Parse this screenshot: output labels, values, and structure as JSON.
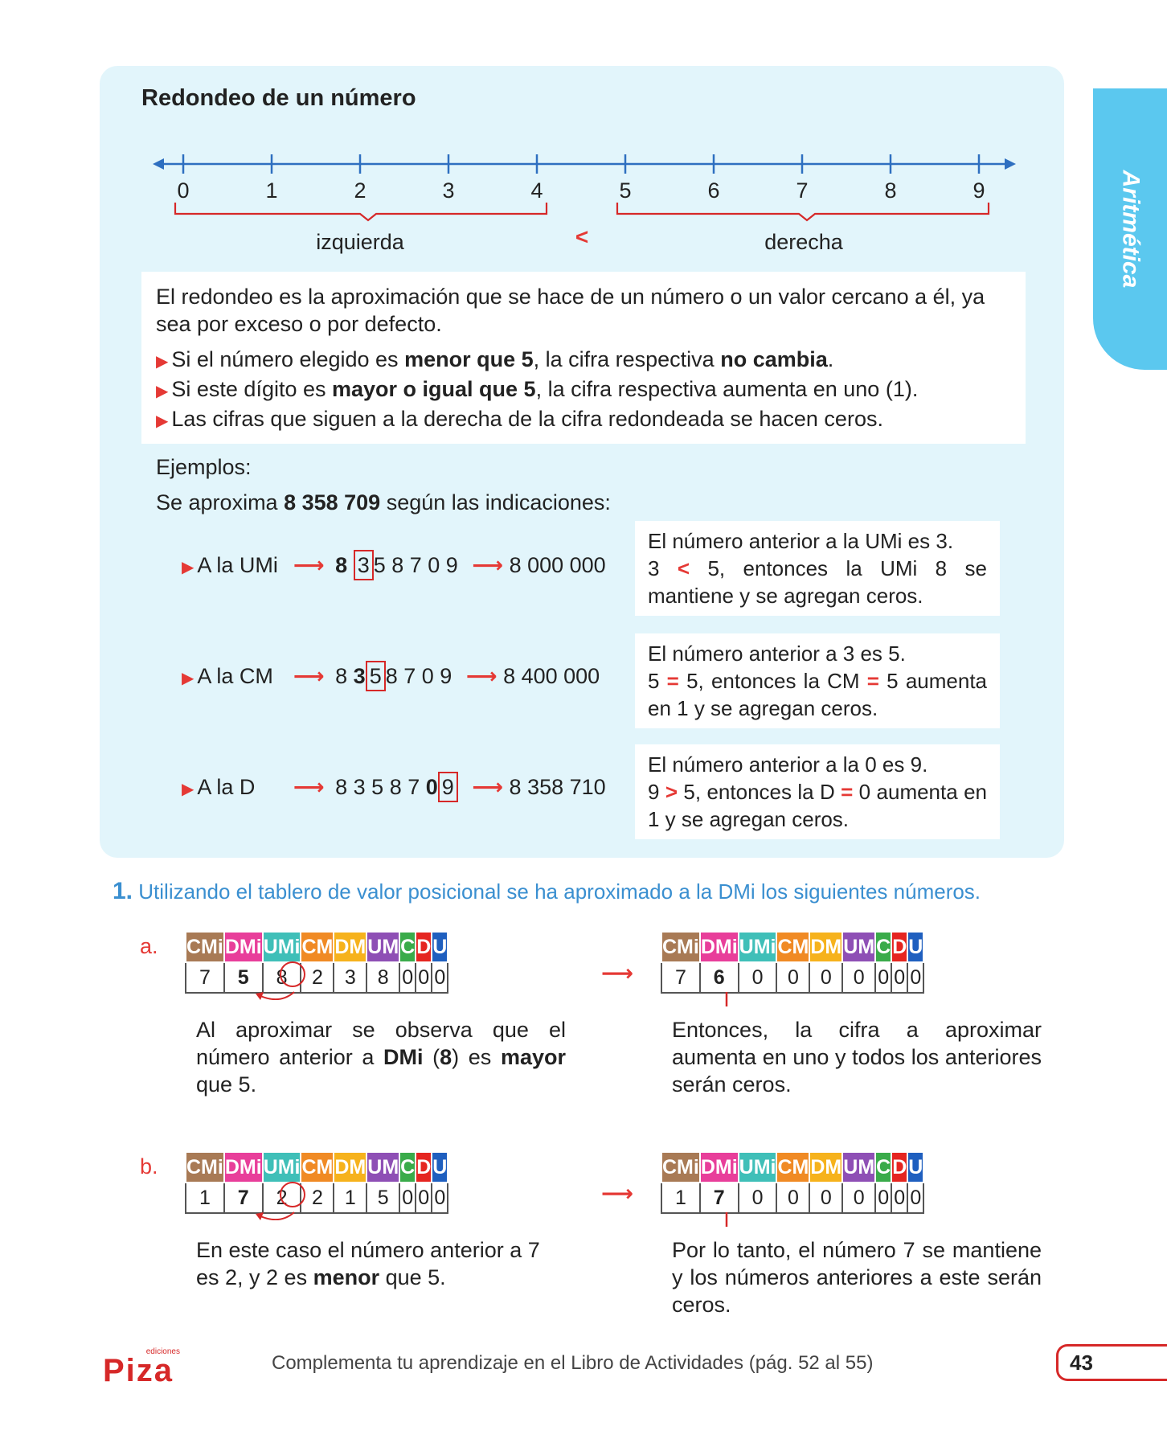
{
  "section": {
    "title": "Redondeo de un número",
    "side_tab": "Aritmética"
  },
  "number_line": {
    "ticks": [
      "0",
      "1",
      "2",
      "3",
      "4",
      "5",
      "6",
      "7",
      "8",
      "9"
    ],
    "left_label": "izquierda",
    "right_label": "derecha",
    "middle_symbol": "<"
  },
  "rules": {
    "intro": "El redondeo es la aproximación que se hace de un número o un valor cercano a él, ya sea por exceso o por defecto.",
    "bullet1_a": "Si el número elegido es ",
    "bullet1_b": "menor que 5",
    "bullet1_c": ", la cifra respectiva ",
    "bullet1_d": "no cambia",
    "bullet1_e": ".",
    "bullet2_a": "Si este dígito es ",
    "bullet2_b": "mayor o igual que 5",
    "bullet2_c": ", la cifra respectiva aumenta en uno (1).",
    "bullet3": "Las cifras que siguen a la derecha de la cifra redondeada se hacen ceros."
  },
  "examples": {
    "heading": "Ejemplos:",
    "intro_a": "Se aproxima ",
    "intro_b": "8 358 709",
    "intro_c": " según las indicaciones:",
    "items": [
      {
        "label": "A la UMi",
        "digits_pre_bold": "",
        "digit_bold": "8",
        "digit_boxed": "3",
        "digits_post": "5 8  7 0 9",
        "result": "8 000 000",
        "expl1": "El número anterior a la UMi es 3.",
        "expl2_a": "3 ",
        "expl2_sym": "<",
        "expl2_b": " 5, entonces la UMi 8 se mantiene y se agregan ceros."
      },
      {
        "label": "A la CM",
        "digits_pre_bold": "8 ",
        "digit_bold": "3",
        "digit_boxed": "5",
        "digits_post": "8  7 0 9",
        "result": "8 400 000",
        "expl1": "El número anterior a 3 es 5.",
        "expl2_a": "5 ",
        "expl2_sym": "=",
        "expl2_b": " 5, entonces la CM ",
        "expl2_sym2": "=",
        "expl2_c": " 5 aumenta en 1 y se agregan ceros."
      },
      {
        "label": "A la D",
        "digits_pre_bold": "8  3 5 8  7 ",
        "digit_bold": "0",
        "digit_boxed": "9",
        "digits_post": "",
        "result": "8 358 710",
        "expl1": "El número anterior a la 0 es 9.",
        "expl2_a": "9 ",
        "expl2_sym": ">",
        "expl2_b": " 5, entonces la D ",
        "expl2_sym2": "=",
        "expl2_c": " 0 aumenta en 1 y se agregan ceros."
      }
    ]
  },
  "exercise": {
    "number": "1.",
    "title": "Utilizando el tablero de valor posicional se ha aproximado a la DMi los siguientes números.",
    "headers": [
      "CMi",
      "DMi",
      "UMi",
      "CM",
      "DM",
      "UM",
      "C",
      "D",
      "U"
    ],
    "header_colors": [
      "#a87a55",
      "#e83e9a",
      "#3fbfb8",
      "#f08a24",
      "#f6b21c",
      "#8e4fb5",
      "#3aab4a",
      "#e52520",
      "#1f5fbf"
    ],
    "a": {
      "letter": "a.",
      "before": [
        "7",
        "5",
        "8",
        "2",
        "3",
        "8",
        "0",
        "0",
        "0"
      ],
      "after": [
        "7",
        "6",
        "0",
        "0",
        "0",
        "0",
        "0",
        "0",
        "0"
      ],
      "left_text_a": "Al aproximar se observa que el número anterior a ",
      "left_text_b": "DMi",
      "left_text_c": " (",
      "left_text_d": "8",
      "left_text_e": ") es ",
      "left_text_f": "mayor",
      "left_text_g": " que 5.",
      "right_text": "Entonces, la cifra a aproximar aumenta en uno y todos los anteriores serán ceros."
    },
    "b": {
      "letter": "b.",
      "before": [
        "1",
        "7",
        "2",
        "2",
        "1",
        "5",
        "0",
        "0",
        "0"
      ],
      "after": [
        "1",
        "7",
        "0",
        "0",
        "0",
        "0",
        "0",
        "0",
        "0"
      ],
      "left_text_a": "En este caso el número anterior a 7 es 2, y 2 es ",
      "left_text_b": "menor",
      "left_text_c": " que 5.",
      "right_text": "Por lo tanto, el número 7 se mantiene y los números anteriores a este serán ceros."
    }
  },
  "footer": {
    "logo_small": "ediciones",
    "logo": "Piza",
    "text": "Complementa tu aprendizaje en el Libro de Actividades (pág. 52 al 55)",
    "page": "43"
  },
  "colors": {
    "panel": "#e2f5fb",
    "accent_red": "#e53935",
    "line_blue": "#2e6fc0",
    "tab_blue": "#5bc8ef",
    "title_blue": "#3a8fd0"
  }
}
